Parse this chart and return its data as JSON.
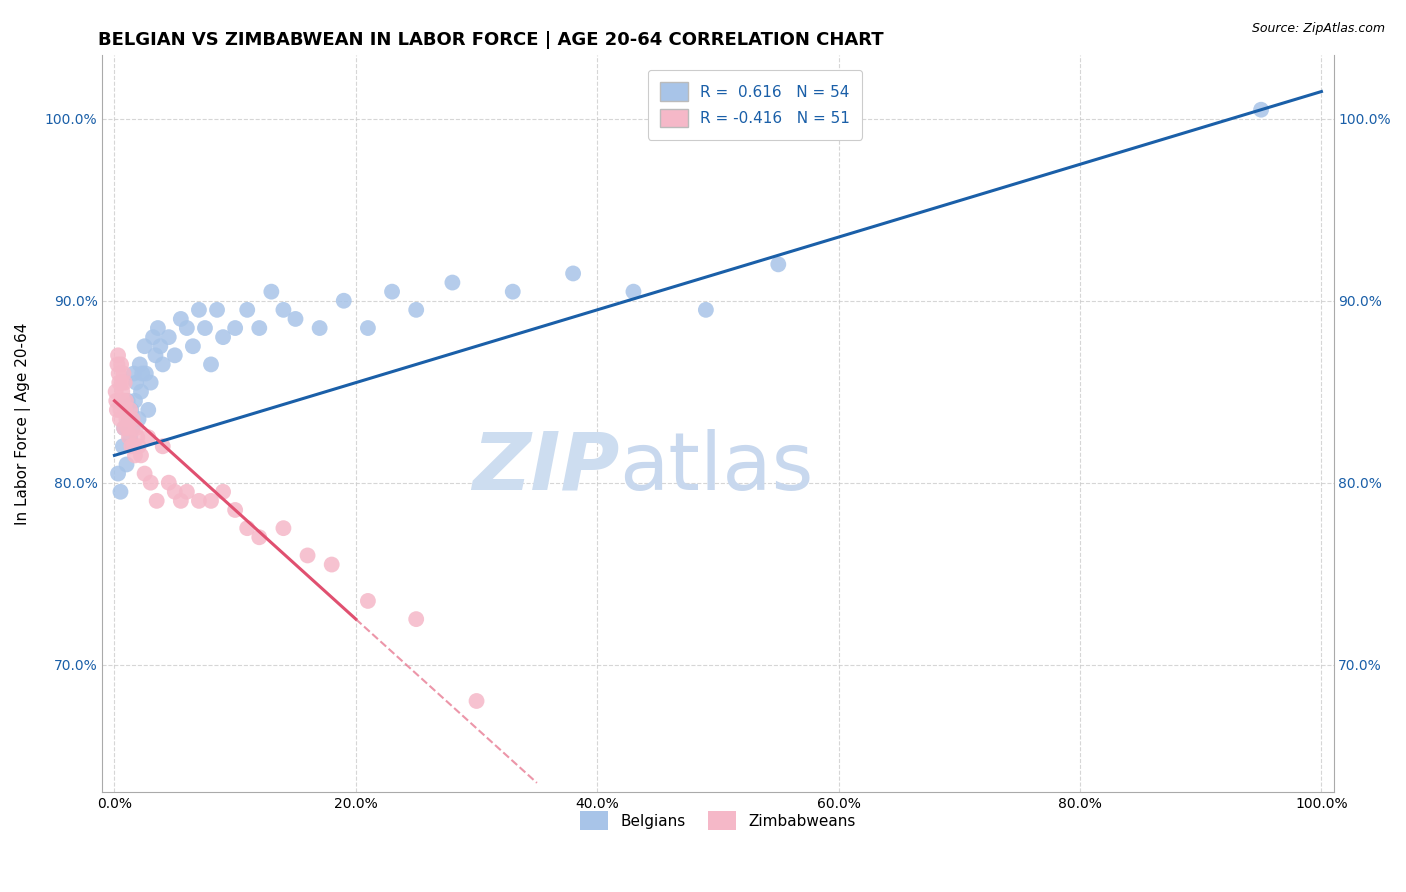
{
  "title": "BELGIAN VS ZIMBABWEAN IN LABOR FORCE | AGE 20-64 CORRELATION CHART",
  "source_text": "Source: ZipAtlas.com",
  "ylabel": "In Labor Force | Age 20-64",
  "x_tick_labels": [
    "0.0%",
    "20.0%",
    "40.0%",
    "60.0%",
    "80.0%",
    "100.0%"
  ],
  "x_tick_vals": [
    0.0,
    20.0,
    40.0,
    60.0,
    80.0,
    100.0
  ],
  "y_tick_labels": [
    "70.0%",
    "80.0%",
    "90.0%",
    "100.0%"
  ],
  "y_tick_vals": [
    70.0,
    80.0,
    90.0,
    100.0
  ],
  "ylim": [
    63.0,
    103.5
  ],
  "xlim": [
    -1.0,
    101.0
  ],
  "legend_labels": [
    "Belgians",
    "Zimbabweans"
  ],
  "r_belgian": 0.616,
  "n_belgian": 54,
  "r_zimbabwean": -0.416,
  "n_zimbabwean": 51,
  "blue_color": "#a8c4e8",
  "pink_color": "#f5b8c8",
  "blue_line_color": "#1a5fa8",
  "pink_line_color": "#e05070",
  "watermark_zip": "ZIP",
  "watermark_atlas": "atlas",
  "watermark_color": "#cdddf0",
  "title_fontsize": 13,
  "axis_label_fontsize": 11,
  "tick_fontsize": 10,
  "legend_fontsize": 11,
  "blue_scatter_x": [
    0.3,
    0.5,
    0.7,
    0.8,
    1.0,
    1.1,
    1.2,
    1.3,
    1.4,
    1.5,
    1.6,
    1.7,
    1.8,
    2.0,
    2.1,
    2.2,
    2.3,
    2.5,
    2.6,
    2.8,
    3.0,
    3.2,
    3.4,
    3.6,
    3.8,
    4.0,
    4.5,
    5.0,
    5.5,
    6.0,
    6.5,
    7.0,
    7.5,
    8.0,
    8.5,
    9.0,
    10.0,
    11.0,
    12.0,
    13.0,
    14.0,
    15.0,
    17.0,
    19.0,
    21.0,
    23.0,
    25.0,
    28.0,
    33.0,
    38.0,
    43.0,
    49.0,
    55.0,
    95.0
  ],
  "blue_scatter_y": [
    80.5,
    79.5,
    82.0,
    83.0,
    81.0,
    84.5,
    83.5,
    82.5,
    84.0,
    83.0,
    86.0,
    84.5,
    85.5,
    83.5,
    86.5,
    85.0,
    86.0,
    87.5,
    86.0,
    84.0,
    85.5,
    88.0,
    87.0,
    88.5,
    87.5,
    86.5,
    88.0,
    87.0,
    89.0,
    88.5,
    87.5,
    89.5,
    88.5,
    86.5,
    89.5,
    88.0,
    88.5,
    89.5,
    88.5,
    90.5,
    89.5,
    89.0,
    88.5,
    90.0,
    88.5,
    90.5,
    89.5,
    91.0,
    90.5,
    91.5,
    90.5,
    89.5,
    92.0,
    100.5
  ],
  "pink_scatter_x": [
    0.1,
    0.15,
    0.2,
    0.25,
    0.3,
    0.35,
    0.4,
    0.45,
    0.5,
    0.55,
    0.6,
    0.65,
    0.7,
    0.75,
    0.8,
    0.85,
    0.9,
    0.95,
    1.0,
    1.1,
    1.2,
    1.3,
    1.4,
    1.5,
    1.6,
    1.7,
    1.8,
    1.9,
    2.0,
    2.2,
    2.5,
    2.8,
    3.0,
    3.5,
    4.0,
    4.5,
    5.0,
    5.5,
    6.0,
    7.0,
    8.0,
    9.0,
    10.0,
    11.0,
    12.0,
    14.0,
    16.0,
    18.0,
    21.0,
    25.0,
    30.0
  ],
  "pink_scatter_y": [
    85.0,
    84.5,
    84.0,
    86.5,
    87.0,
    86.0,
    85.5,
    83.5,
    84.0,
    86.5,
    85.5,
    85.0,
    84.5,
    86.0,
    83.0,
    85.5,
    84.0,
    84.5,
    83.5,
    83.0,
    82.5,
    84.0,
    82.0,
    83.5,
    82.0,
    81.5,
    83.0,
    82.5,
    82.0,
    81.5,
    80.5,
    82.5,
    80.0,
    79.0,
    82.0,
    80.0,
    79.5,
    79.0,
    79.5,
    79.0,
    79.0,
    79.5,
    78.5,
    77.5,
    77.0,
    77.5,
    76.0,
    75.5,
    73.5,
    72.5,
    68.0
  ],
  "blue_line_x0": 0.0,
  "blue_line_x1": 100.0,
  "blue_line_y0": 81.5,
  "blue_line_y1": 101.5,
  "pink_line_solid_x0": 0.0,
  "pink_line_solid_x1": 20.0,
  "pink_line_y0": 84.5,
  "pink_line_y1": 72.5,
  "pink_line_dash_x0": 20.0,
  "pink_line_dash_x1": 35.0,
  "pink_line_dash_y0": 72.5,
  "pink_line_dash_y1": 63.5
}
